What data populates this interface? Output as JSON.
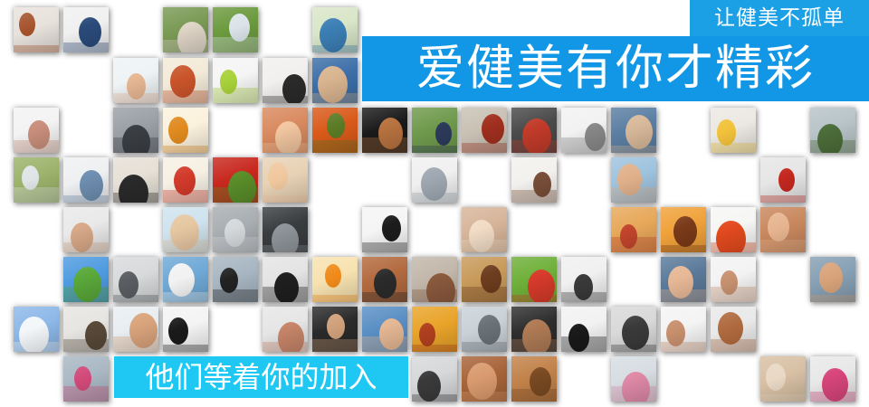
{
  "banner": {
    "tag_text": "让健美不孤单",
    "headline": "爱健美有你才精彩",
    "subline": "他们等着你的加入"
  },
  "photo_tiles": [
    {
      "subject": "bodybuilder",
      "bg": "#e8e2dc",
      "fg": "#a5522c"
    },
    {
      "subject": "barbell-squat",
      "bg": "#f0f0f0",
      "fg": "#2a4b7a"
    },
    {
      "subject": "outdoor-stretch",
      "bg": "#7a9a55",
      "fg": "#e0d6c8"
    },
    {
      "subject": "yoga-grass",
      "bg": "#6c9a3e",
      "fg": "#dbe4e8"
    },
    {
      "subject": "couple-stretch",
      "bg": "#d9e6c8",
      "fg": "#3c7fb5"
    },
    {
      "subject": "woman-water",
      "bg": "#eef3f6",
      "fg": "#e8b894"
    },
    {
      "subject": "food-pyramid",
      "bg": "#f3ead8",
      "fg": "#c9542a"
    },
    {
      "subject": "shaker-bottle",
      "bg": "#f5f5f5",
      "fg": "#a8d23a"
    },
    {
      "subject": "yoga-pose",
      "bg": "#f2f0ee",
      "fg": "#2b2b2b"
    },
    {
      "subject": "group-class",
      "bg": "#3d6fa8",
      "fg": "#d9b48f"
    },
    {
      "subject": "drinking-water",
      "bg": "#f3f3f3",
      "fg": "#c98f7c"
    },
    {
      "subject": "gym-room",
      "bg": "#9aa0a6",
      "fg": "#3b3f44"
    },
    {
      "subject": "vitamins",
      "bg": "#fbf2dd",
      "fg": "#e08a1e"
    },
    {
      "subject": "abs-torso",
      "bg": "#d98a5f",
      "fg": "#f2c6a0"
    },
    {
      "subject": "papaya",
      "bg": "#d95a1a",
      "fg": "#5a7a25"
    },
    {
      "subject": "muscle-dark",
      "bg": "#1a1a1a",
      "fg": "#b7723f"
    },
    {
      "subject": "reading-outdoors",
      "bg": "#6f9a4c",
      "fg": "#2d3b5c"
    },
    {
      "subject": "running-shoes",
      "bg": "#c9c1b4",
      "fg": "#a02f1e"
    },
    {
      "subject": "dumbbell-curl",
      "bg": "#4a4a4a",
      "fg": "#c23b2a"
    },
    {
      "subject": "shopping-cart",
      "bg": "#f2f2f2",
      "fg": "#8a8a8a"
    },
    {
      "subject": "couple-sit",
      "bg": "#5b7fa3",
      "fg": "#d8b99a"
    },
    {
      "subject": "egg",
      "bg": "#ece8e2",
      "fg": "#f2c23a"
    },
    {
      "subject": "gym-woman",
      "bg": "#b8c4c8",
      "fg": "#4c6e3a"
    },
    {
      "subject": "office-desk",
      "bg": "#9cb36b",
      "fg": "#dfe4e6"
    },
    {
      "subject": "floor-exercise",
      "bg": "#eef0f2",
      "fg": "#6f8fb2"
    },
    {
      "subject": "trainer-pose",
      "bg": "#e6e0d6",
      "fg": "#2a2a2a"
    },
    {
      "subject": "vegetables",
      "bg": "#f6f0e4",
      "fg": "#d23a2a"
    },
    {
      "subject": "strawberries",
      "bg": "#c8281e",
      "fg": "#5b8f2a"
    },
    {
      "subject": "baby-teddy",
      "bg": "#e8d2b5",
      "fg": "#f0c79d"
    },
    {
      "subject": "sitting-stretch",
      "bg": "#f0f0f0",
      "fg": "#9fa8b2"
    },
    {
      "subject": "high-kick",
      "bg": "#f3f1ed",
      "fg": "#7a4f3a"
    },
    {
      "subject": "beach-legs",
      "bg": "#9ec3de",
      "fg": "#e0b089"
    },
    {
      "subject": "treadmill-man",
      "bg": "#e6e6e6",
      "fg": "#c4281f"
    },
    {
      "subject": "waist-measure",
      "bg": "#e9e9e9",
      "fg": "#d7a888"
    },
    {
      "subject": "hands-beach",
      "bg": "#cfe3ee",
      "fg": "#e6c7a2"
    },
    {
      "subject": "grey-tiles",
      "bg": "#a9aeb2",
      "fg": "#d6d9dc"
    },
    {
      "subject": "dumbbell-rack",
      "bg": "#3a3d40",
      "fg": "#8f959a"
    },
    {
      "subject": "jump-rope",
      "bg": "#f5f5f5",
      "fg": "#1c1c1c"
    },
    {
      "subject": "massage-back",
      "bg": "#d7b59a",
      "fg": "#f2dcc6"
    },
    {
      "subject": "happy-group",
      "bg": "#e7a85a",
      "fg": "#c2452d"
    },
    {
      "subject": "sunset-friends",
      "bg": "#f0a23a",
      "fg": "#7a3a18"
    },
    {
      "subject": "fruit-heart",
      "bg": "#f6f6f4",
      "fg": "#e34a1f"
    },
    {
      "subject": "arm-flex",
      "bg": "#c9885e",
      "fg": "#e6b48f"
    },
    {
      "subject": "rainbow-field",
      "bg": "#4f9be0",
      "fg": "#5aa83a"
    },
    {
      "subject": "treadmill",
      "bg": "#d8dadc",
      "fg": "#5a5e62"
    },
    {
      "subject": "woman-bottle",
      "bg": "#6fa9d6",
      "fg": "#f2f2f2"
    },
    {
      "subject": "leg-press",
      "bg": "#a7b6c2",
      "fg": "#222222"
    },
    {
      "subject": "black-weights",
      "bg": "#e4e4e4",
      "fg": "#1f1f1f"
    },
    {
      "subject": "orange-juice",
      "bg": "#f7e2b0",
      "fg": "#f08a1a"
    },
    {
      "subject": "flexing-man",
      "bg": "#b36a3e",
      "fg": "#2b2b2b"
    },
    {
      "subject": "fit-man-gym",
      "bg": "#c2b7aa",
      "fg": "#8c5b3e"
    },
    {
      "subject": "nuts-grains",
      "bg": "#c89a5a",
      "fg": "#6e3d1e"
    },
    {
      "subject": "salad",
      "bg": "#6fb03a",
      "fg": "#d93b2b"
    },
    {
      "subject": "bike-spin",
      "bg": "#f0f0f0",
      "fg": "#3a3a3a"
    },
    {
      "subject": "woman-blue",
      "bg": "#5b7a9a",
      "fg": "#e6b896"
    },
    {
      "subject": "woman-bikini",
      "bg": "#f3f3f3",
      "fg": "#c89270"
    },
    {
      "subject": "man-gym-2",
      "bg": "#87a0b4",
      "fg": "#d8a37a"
    },
    {
      "subject": "snow-mountain",
      "bg": "#8db8e8",
      "fg": "#f4f7fa"
    },
    {
      "subject": "laptop-coffee",
      "bg": "#e7e5e2",
      "fg": "#5a4a3a"
    },
    {
      "subject": "drinking-bottle",
      "bg": "#e8eef2",
      "fg": "#d9a47c"
    },
    {
      "subject": "whey-protein",
      "bg": "#f4f4f4",
      "fg": "#1a1a1a"
    },
    {
      "subject": "tying-shoes",
      "bg": "#e6e6e6",
      "fg": "#c8866a"
    },
    {
      "subject": "weights-woman",
      "bg": "#2a2a2a",
      "fg": "#d0a07a"
    },
    {
      "subject": "group-smile",
      "bg": "#5a8fc4",
      "fg": "#e6b894"
    },
    {
      "subject": "paella",
      "bg": "#e9a42a",
      "fg": "#b0401e"
    },
    {
      "subject": "treadmill-row",
      "bg": "#c9d2d8",
      "fg": "#6a7278"
    },
    {
      "subject": "back-muscles",
      "bg": "#2e2e2e",
      "fg": "#b07b55"
    },
    {
      "subject": "protein-tubs",
      "bg": "#f2f2f2",
      "fg": "#1a1a1a"
    },
    {
      "subject": "kettlebell",
      "bg": "#d9d9d9",
      "fg": "#3a3a3a"
    },
    {
      "subject": "balance-pose",
      "bg": "#f4f4f4",
      "fg": "#c8906e"
    },
    {
      "subject": "muscle-man",
      "bg": "#e9e9e9",
      "fg": "#b06a3e"
    },
    {
      "subject": "climbing-wall",
      "bg": "#a9b8c4",
      "fg": "#d24a7a"
    },
    {
      "subject": "chair-stretch",
      "bg": "#d6d8da",
      "fg": "#3a3a3a"
    },
    {
      "subject": "abs-tan",
      "bg": "#a8643a",
      "fg": "#d99a6e"
    },
    {
      "subject": "mixed-nuts",
      "bg": "#c2824a",
      "fg": "#7a4a22"
    },
    {
      "subject": "gym-class",
      "bg": "#d7dde2",
      "fg": "#e08aa8"
    },
    {
      "subject": "protein-powder",
      "bg": "#d8c0a4",
      "fg": "#e8d8c4"
    },
    {
      "subject": "pink-dumbbells",
      "bg": "#e8e8e8",
      "fg": "#d8457a"
    }
  ]
}
